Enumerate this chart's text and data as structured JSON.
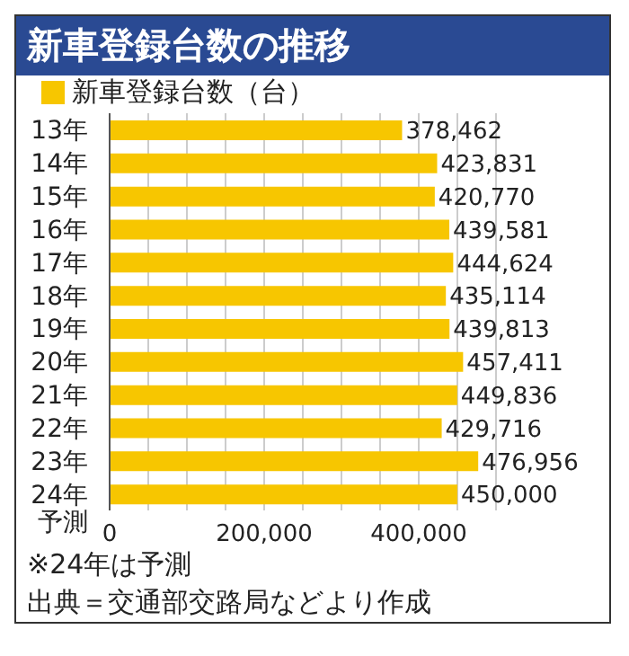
{
  "chart_data": {
    "type": "bar",
    "orientation": "horizontal",
    "title": "新車登録台数の推移",
    "categories": [
      "13年",
      "14年",
      "15年",
      "16年",
      "17年",
      "18年",
      "19年",
      "20年",
      "21年",
      "22年",
      "23年",
      "24年予測"
    ],
    "series": [
      {
        "name": "新車登録台数（台）",
        "color": "#f7c600",
        "values": [
          378462,
          423831,
          420770,
          439581,
          444624,
          435114,
          439813,
          457411,
          449836,
          429716,
          476956,
          450000
        ],
        "value_labels": [
          "378,462",
          "423,831",
          "420,770",
          "439,581",
          "444,624",
          "435,114",
          "439,813",
          "457,411",
          "449,836",
          "429,716",
          "476,956",
          "450,000"
        ]
      }
    ],
    "xlim": [
      0,
      500000
    ],
    "xticks": [
      0,
      {
        "value": 50000,
        "label": null
      },
      {
        "value": 100000,
        "label": null
      },
      {
        "value": 150000,
        "label": null
      },
      {
        "value": 200000,
        "label": "200,000"
      },
      {
        "value": 250000,
        "label": null
      },
      {
        "value": 300000,
        "label": null
      },
      {
        "value": 350000,
        "label": null
      },
      {
        "value": 400000,
        "label": "400,000"
      },
      {
        "value": 450000,
        "label": null
      },
      {
        "value": 500000,
        "label": null
      }
    ],
    "grid": "x",
    "legend": "top left",
    "annotations": [
      "※24年は予測",
      "出典＝交通部交路局などより作成"
    ]
  }
}
